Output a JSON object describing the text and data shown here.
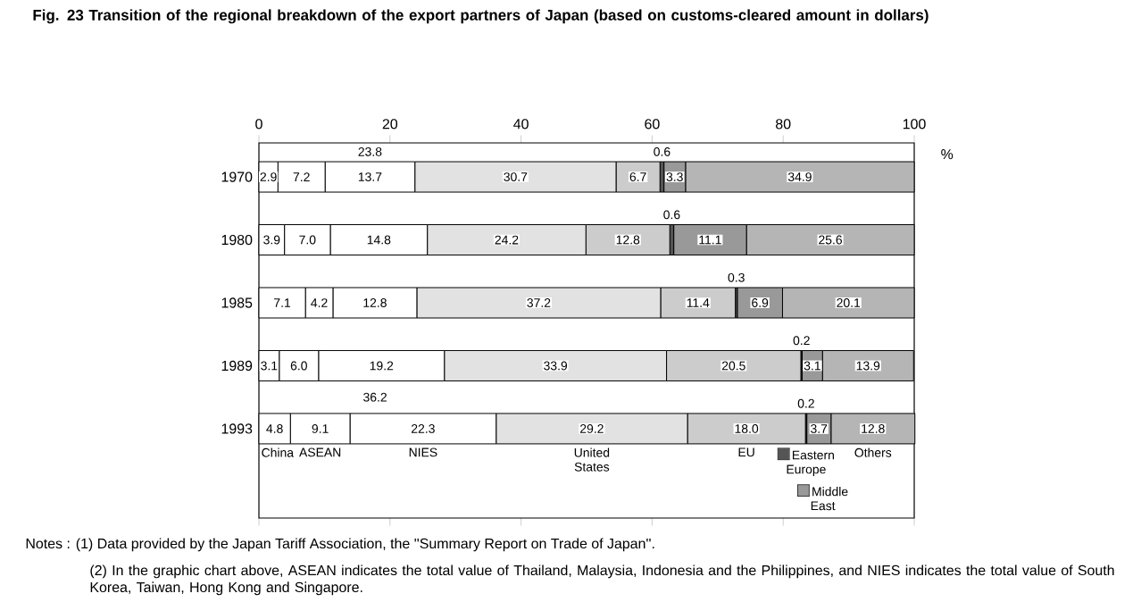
{
  "chart_data": {
    "type": "bar",
    "orientation": "horizontal",
    "stacked": true,
    "legend": "bottom",
    "title": "Fig. 23 Transition of the regional breakdown of the export partners of Japan (based on customs-cleared amount in dollars)",
    "xlabel": "%",
    "categories": [
      "1970",
      "1980",
      "1985",
      "1989",
      "1993"
    ],
    "xlim": [
      0,
      100
    ],
    "xticks": [
      0,
      20,
      40,
      60,
      80,
      100
    ],
    "grid": false,
    "series": [
      {
        "name": "China",
        "color": "#ffffff",
        "values": [
          2.9,
          3.9,
          7.1,
          3.1,
          4.8
        ],
        "value_labels": [
          "2.9",
          "3.9",
          "7.1",
          "3.1",
          "4.8"
        ]
      },
      {
        "name": "ASEAN",
        "color": "#ffffff",
        "values": [
          7.2,
          7.0,
          4.2,
          6.0,
          9.1
        ],
        "value_labels": [
          "7.2",
          "7.0",
          "4.2",
          "6.0",
          "9.1"
        ]
      },
      {
        "name": "NIES",
        "color": "#ffffff",
        "values": [
          13.7,
          14.8,
          12.8,
          19.2,
          22.3
        ],
        "value_labels": [
          "13.7",
          "14.8",
          "12.8",
          "19.2",
          "22.3"
        ]
      },
      {
        "name": "United States",
        "color": "#e2e2e2",
        "values": [
          30.7,
          24.2,
          37.2,
          33.9,
          29.2
        ],
        "value_labels": [
          "30.7",
          "24.2",
          "37.2",
          "33.9",
          "29.2"
        ]
      },
      {
        "name": "EU",
        "color": "#cccccc",
        "values": [
          6.7,
          12.8,
          11.4,
          20.5,
          18.0
        ],
        "value_labels": [
          "6.7",
          "12.8",
          "11.4",
          "20.5",
          "18.0"
        ]
      },
      {
        "name": "Eastern Europe",
        "color": "#555555",
        "values": [
          0.6,
          0.6,
          0.3,
          0.2,
          0.2
        ],
        "value_labels": [
          "0.6",
          "0.6",
          "0.3",
          "0.2",
          "0.2"
        ]
      },
      {
        "name": "Middle East",
        "color": "#999999",
        "values": [
          3.3,
          11.1,
          6.9,
          3.1,
          3.7
        ],
        "value_labels": [
          "3.3",
          "11.1",
          "6.9",
          "3.1",
          "3.7"
        ]
      },
      {
        "name": "Others",
        "color": "#b5b5b5",
        "values": [
          34.9,
          25.6,
          20.1,
          13.9,
          12.8
        ],
        "value_labels": [
          "34.9",
          "25.6",
          "20.1",
          "13.9",
          "12.8"
        ]
      }
    ],
    "annotations": [
      "23.8",
      "36.2",
      "Notes : (1) Data provided by the Japan Tariff Association, the ''Summary Report on Trade of Japan''.",
      "(2) In the graphic chart above, ASEAN indicates the total value of Thailand, Malaysia, Indonesia and the Philippines, and NIES indicates the total value of South Korea, Taiwan, Hong Kong and Singapore."
    ]
  }
}
